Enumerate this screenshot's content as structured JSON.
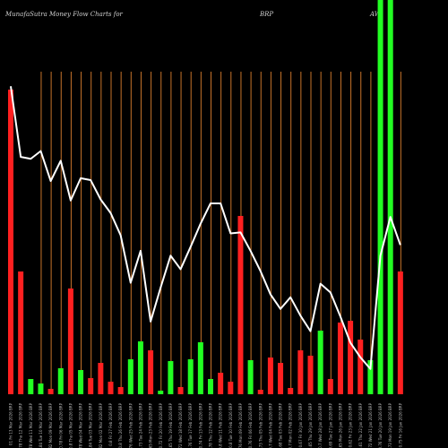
{
  "header": {
    "title": "MunafaSutra  Money Flow  Charts for",
    "symbol": "BRP",
    "suffix": "AW"
  },
  "chart_data": {
    "type": "bar",
    "title": "MunafaSutra  Money Flow  Charts for BRP AW",
    "colors": {
      "up": "#22ff22",
      "down": "#ff2020",
      "line": "#ffffff",
      "grid": "#c8742a",
      "background": "#000000"
    },
    "x_labels": [
      "01 Fri 13 Mar 2026 BRP",
      "0.78 Thu 12 Mar 2026 BRP",
      "0.78 Wed 11 Mar 2026 BRP",
      "0.84 Tue 10 Mar 2026 BRP",
      "0.82 Mon 09 Mar 2026 BRP",
      "0.78 Fri 06 Mar 2026 BRP",
      "0.8 Thu 05 Mar 2026 BRP",
      "0.78 Wed 04 Mar 2026 BRP",
      "0.84 Tue 03 Mar 2026 BRP",
      "0.82 Mon 02 Mar 2026 BRP",
      "0.8 Fri 27 Feb 2026 BRP",
      "0.8 Thu 26 Feb 2026 BRP",
      "0.76 Wed 25 Feb 2026 BRP",
      "0.73 Tue 24 Feb 2026 BRP",
      "0.65 Mon 23 Feb 2026 BRP",
      "0.72 Fri 20 Feb 2026 BRP",
      "0.65 Thu 19 Feb 2026 BRP",
      "0.72 Wed 18 Feb 2026 BRP",
      "0.76 Tue 17 Feb 2026 BRP",
      "0.74 Fri 13 Feb 2026 BRP",
      "0.78 Thu 12 Feb 2026 BRP",
      "0.8 Wed 11 Feb 2026 BRP",
      "0.8 Tue 10 Feb 2026 BRP",
      "0.76 Mon 09 Feb 2026 BRP",
      "0.76 Fri 06 Feb 2026 BRP",
      "0.73 Thu 05 Feb 2026 BRP",
      "0.7 Wed 04 Feb 2026 BRP",
      "0.68 Tue 03 Feb 2026 BRP",
      "0.7 Mon 02 Feb 2026 BRP",
      "0.67 Fri 30 Jan 2026 BRP",
      "0.65 Thu 29 Jan 2026 BRP",
      "0.7 Wed 28 Jan 2026 BRP",
      "0.69 Tue 27 Jan 2026 BRP",
      "0.65 Mon 26 Jan 2026 BRP",
      "0.62 Fri 23 Jan 2026 BRP",
      "0.61 Thu 22 Jan 2026 BRP",
      "0.72 Wed 21 Jan 2026 BRP",
      "0.76 Tue 20 Jan 2026 BRP",
      "0.73 Mon 19 Jan 2026 BRP",
      "0.75 Fri 16 Jan 2026 BRP"
    ],
    "bar_colors": [
      "red",
      "red",
      "green",
      "green",
      "red",
      "green",
      "red",
      "green",
      "red",
      "red",
      "red",
      "red",
      "green",
      "green",
      "red",
      "green",
      "green",
      "red",
      "green",
      "green",
      "green",
      "red",
      "red",
      "red",
      "green",
      "red",
      "red",
      "red",
      "red",
      "red",
      "red",
      "green",
      "red",
      "red",
      "red",
      "red",
      "green",
      "green",
      "green",
      "red"
    ],
    "bar_values": [
      340,
      137,
      17,
      12,
      6,
      29,
      118,
      27,
      18,
      35,
      14,
      8,
      39,
      59,
      49,
      4,
      37,
      8,
      39,
      58,
      17,
      24,
      14,
      199,
      38,
      5,
      41,
      35,
      7,
      49,
      43,
      71,
      17,
      80,
      82,
      61,
      38,
      440,
      440,
      137
    ],
    "bar_ylim": [
      0,
      355
    ],
    "line_values": [
      415,
      342,
      340,
      348,
      317,
      338,
      297,
      320,
      318,
      298,
      284,
      261,
      212,
      245,
      172,
      207,
      240,
      226,
      249,
      273,
      294,
      294,
      263,
      264,
      245,
      224,
      200,
      185,
      197,
      178,
      162,
      211,
      202,
      177,
      150,
      135,
      123,
      240,
      280,
      251
    ],
    "line_ylim": [
      120,
      430
    ]
  }
}
